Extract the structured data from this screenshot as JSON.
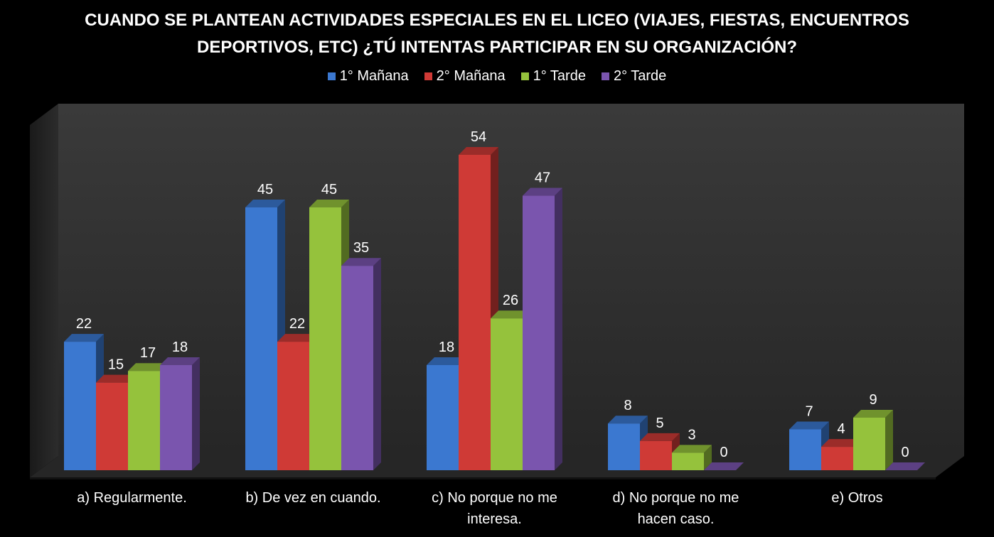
{
  "title_lines": [
    "CUANDO SE PLANTEAN ACTIVIDADES ESPECIALES EN EL LICEO (VIAJES, FIESTAS, ENCUENTROS",
    "DEPORTIVOS, ETC) ¿TÚ INTENTAS PARTICIPAR EN SU ORGANIZACIÓN?"
  ],
  "legend": [
    {
      "name": "1° Mañana",
      "color": "#3b78d0"
    },
    {
      "name": "2° Mañana",
      "color": "#cf3a36"
    },
    {
      "name": "1° Tarde",
      "color": "#95c23c"
    },
    {
      "name": "2° Tarde",
      "color": "#7a55ae"
    }
  ],
  "chart_data": {
    "type": "bar",
    "title": "CUANDO SE PLANTEAN ACTIVIDADES ESPECIALES EN EL LICEO (VIAJES, FIESTAS, ENCUENTROS DEPORTIVOS, ETC) ¿TÚ INTENTAS PARTICIPAR EN SU ORGANIZACIÓN?",
    "style": "3d-clustered-column",
    "categories": [
      [
        "a) Regularmente."
      ],
      [
        "b) De vez en cuando."
      ],
      [
        "c) No porque no me",
        "interesa."
      ],
      [
        "d) No porque no me",
        "hacen caso."
      ],
      [
        "e)  Otros"
      ]
    ],
    "series": [
      {
        "name": "1° Mañana",
        "color": "#3b78d0",
        "values": [
          22,
          45,
          18,
          8,
          7
        ]
      },
      {
        "name": "2° Mañana",
        "color": "#cf3a36",
        "values": [
          15,
          22,
          54,
          5,
          4
        ]
      },
      {
        "name": "1° Tarde",
        "color": "#95c23c",
        "values": [
          17,
          45,
          26,
          3,
          9
        ]
      },
      {
        "name": "2° Tarde",
        "color": "#7a55ae",
        "values": [
          18,
          35,
          47,
          0,
          0
        ]
      }
    ],
    "data_labels": true,
    "ylim": [
      0,
      60
    ],
    "grid": false,
    "legend_position": "top"
  }
}
